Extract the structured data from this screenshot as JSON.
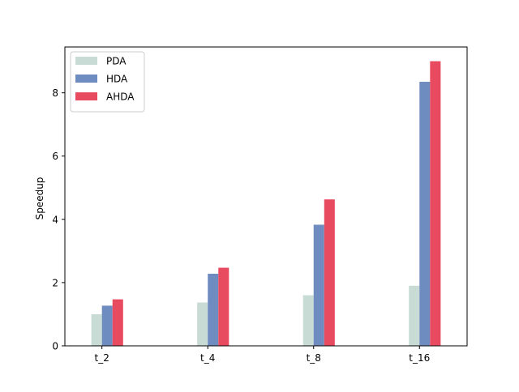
{
  "chart_data": {
    "type": "bar",
    "title": "",
    "xlabel": "",
    "ylabel": "Speedup",
    "categories": [
      "t_2",
      "t_4",
      "t_8",
      "t_16"
    ],
    "series": [
      {
        "name": "PDA",
        "color": "#c8dbd5",
        "values": [
          1.0,
          1.37,
          1.6,
          1.9
        ]
      },
      {
        "name": "HDA",
        "color": "#6f8cc1",
        "values": [
          1.27,
          2.28,
          3.83,
          8.35
        ]
      },
      {
        "name": "AHDA",
        "color": "#e84a5f",
        "values": [
          1.47,
          2.47,
          4.63,
          9.0
        ]
      }
    ],
    "ylim": [
      0,
      9.45
    ],
    "yticks": [
      0,
      2,
      4,
      6,
      8
    ],
    "grid": false,
    "legend_position": "top-left"
  }
}
